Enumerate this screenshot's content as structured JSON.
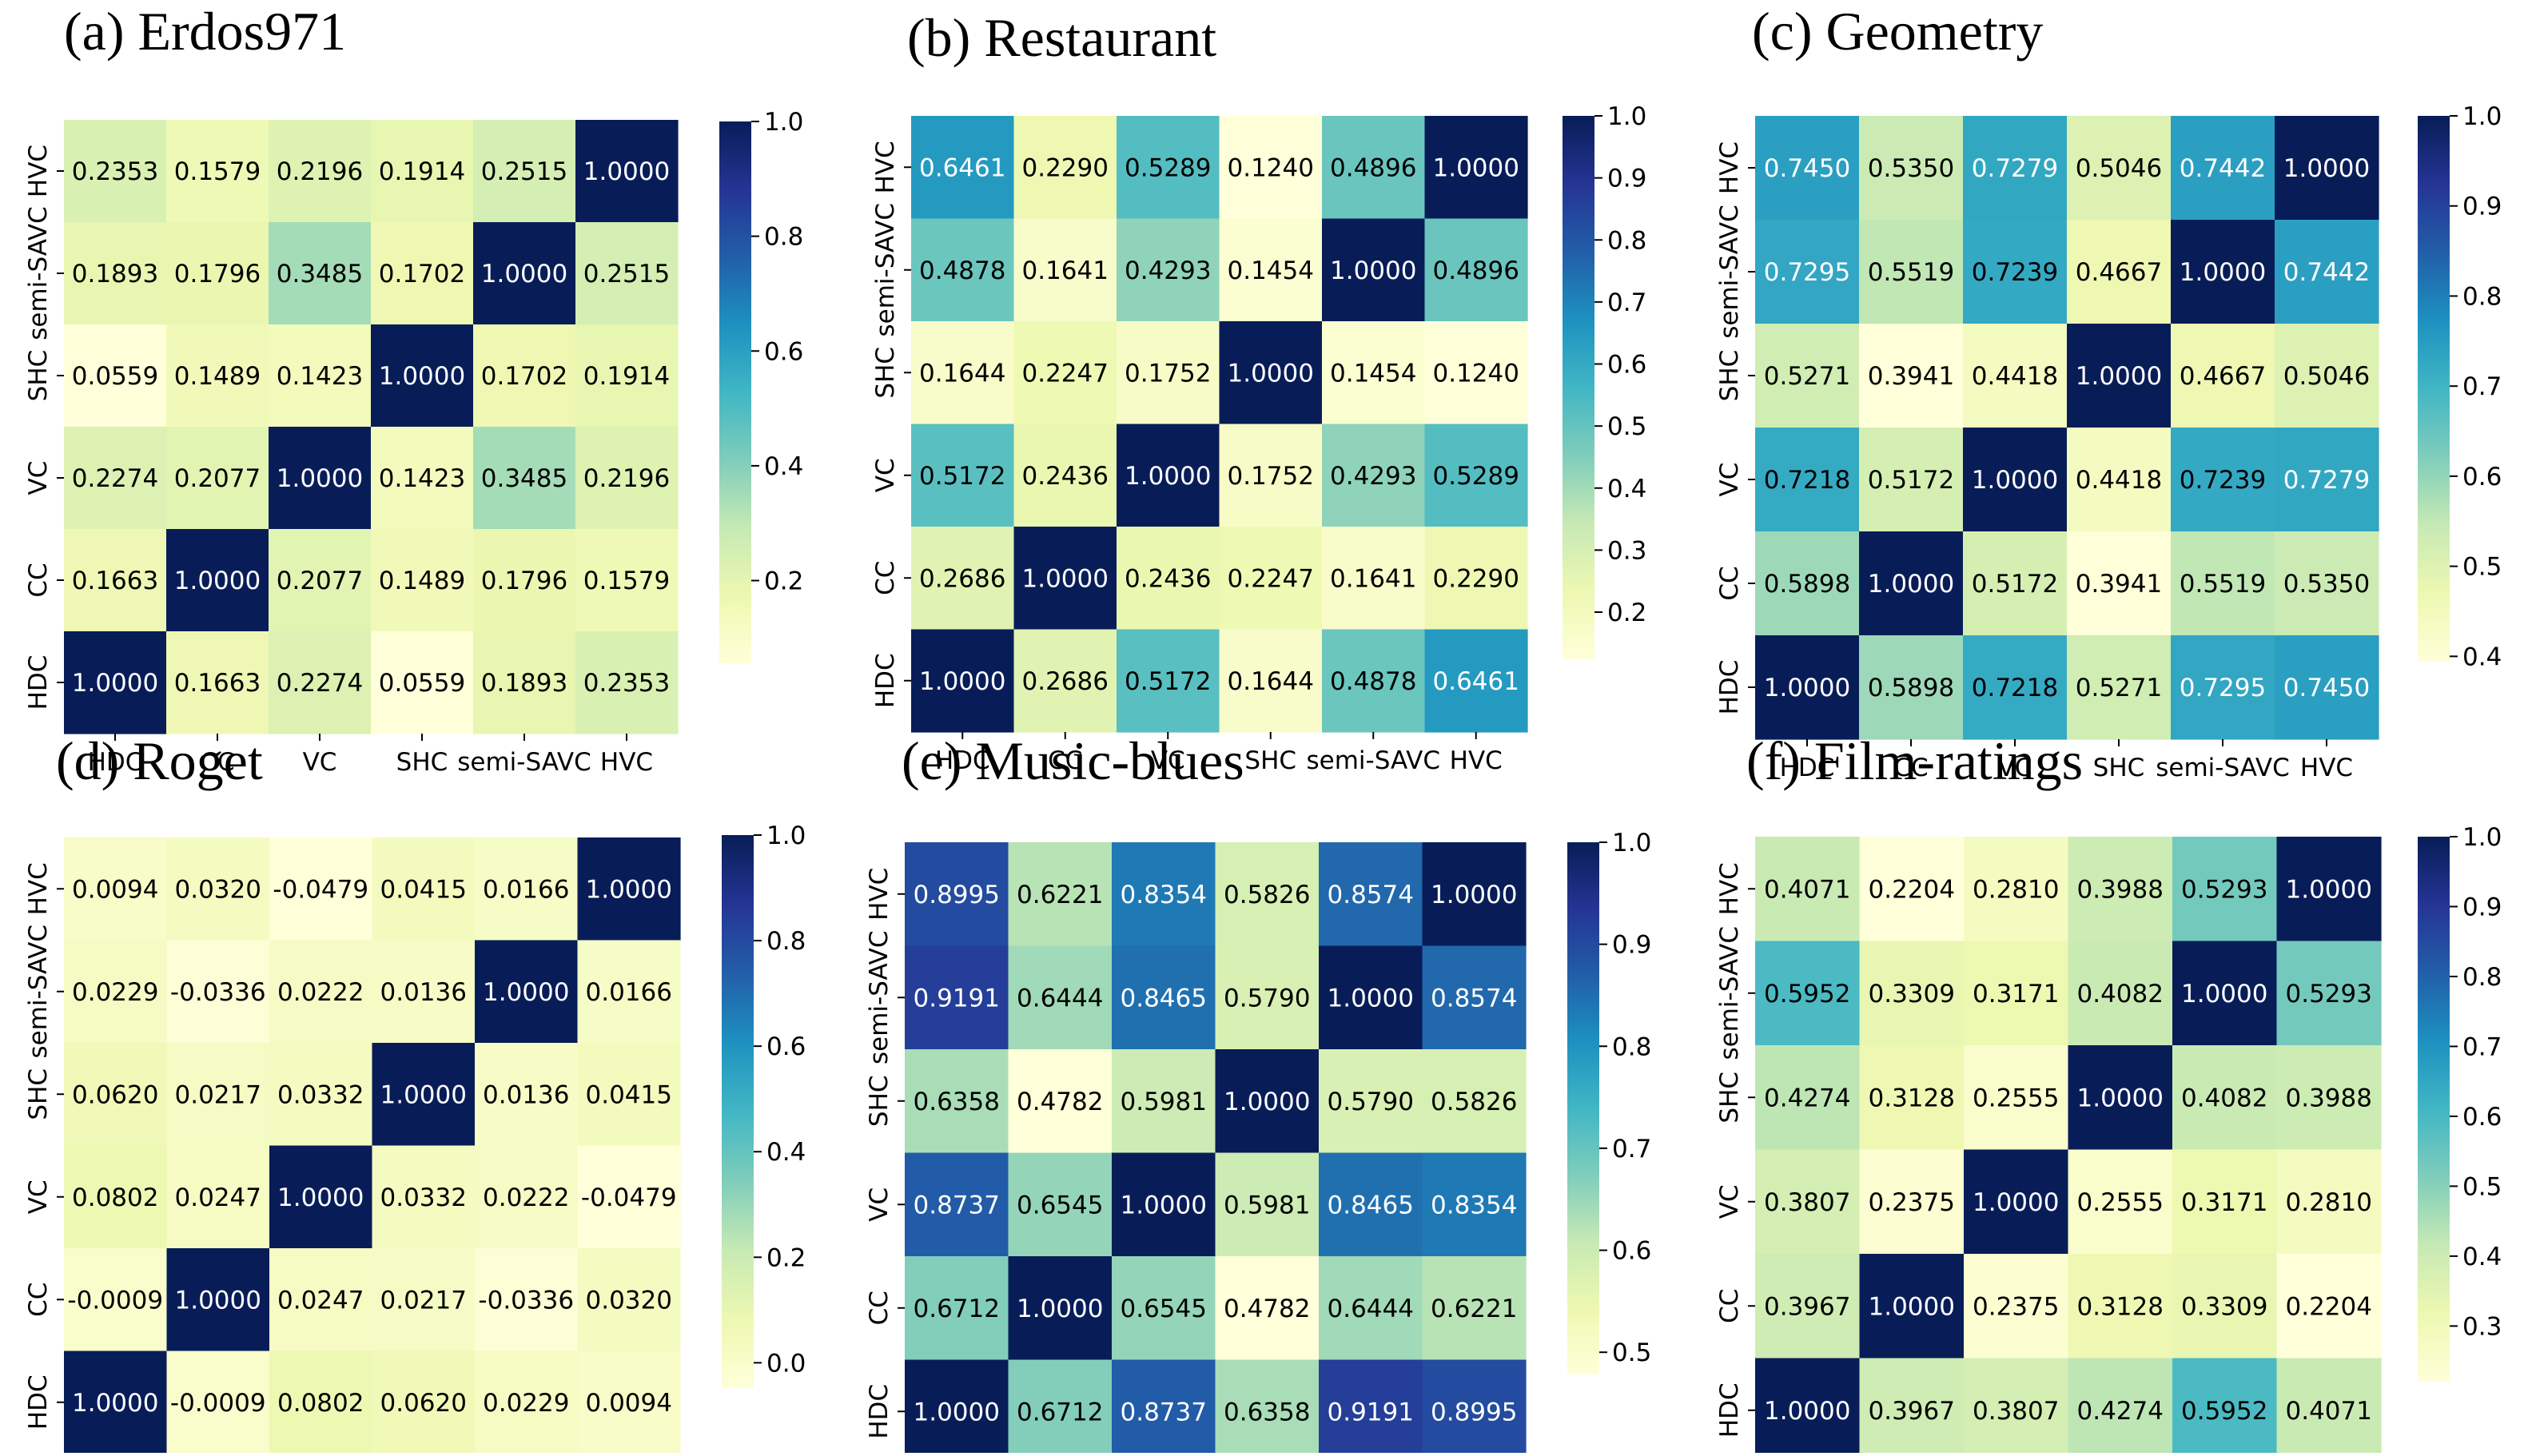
{
  "categories": [
    "HDC",
    "CC",
    "VC",
    "SHC",
    "semi-SAVC",
    "HVC"
  ],
  "colormap": [
    "#ffffd9",
    "#edf8b1",
    "#c7e9b4",
    "#7fcdbb",
    "#41b6c4",
    "#1d91c0",
    "#225ea8",
    "#253494",
    "#081d58"
  ],
  "chart_data": [
    {
      "type": "heatmap",
      "title": "(a) Erdos971",
      "categories": [
        "HDC",
        "CC",
        "VC",
        "SHC",
        "semi-SAVC",
        "HVC"
      ],
      "matrix": [
        [
          "1.0000",
          "0.1663",
          "0.2274",
          "0.0559",
          "0.1893",
          "0.2353"
        ],
        [
          "0.1663",
          "1.0000",
          "0.2077",
          "0.1489",
          "0.1796",
          "0.1579"
        ],
        [
          "0.2274",
          "0.2077",
          "1.0000",
          "0.1423",
          "0.3485",
          "0.2196"
        ],
        [
          "0.0559",
          "0.1489",
          "0.1423",
          "1.0000",
          "0.1702",
          "0.1914"
        ],
        [
          "0.1893",
          "0.1796",
          "0.3485",
          "0.1702",
          "1.0000",
          "0.2515"
        ],
        [
          "0.2353",
          "0.1579",
          "0.2196",
          "0.1914",
          "0.2515",
          "1.0000"
        ]
      ],
      "vmin": 0.0559,
      "vmax": 1.0,
      "colorbar_ticks": [
        "1.0",
        "0.8",
        "0.6",
        "0.4",
        "0.2"
      ]
    },
    {
      "type": "heatmap",
      "title": "(b) Restaurant",
      "categories": [
        "HDC",
        "CC",
        "VC",
        "SHC",
        "semi-SAVC",
        "HVC"
      ],
      "matrix": [
        [
          "1.0000",
          "0.2686",
          "0.5172",
          "0.1644",
          "0.4878",
          "0.6461"
        ],
        [
          "0.2686",
          "1.0000",
          "0.2436",
          "0.2247",
          "0.1641",
          "0.2290"
        ],
        [
          "0.5172",
          "0.2436",
          "1.0000",
          "0.1752",
          "0.4293",
          "0.5289"
        ],
        [
          "0.1644",
          "0.2247",
          "0.1752",
          "1.0000",
          "0.1454",
          "0.1240"
        ],
        [
          "0.4878",
          "0.1641",
          "0.4293",
          "0.1454",
          "1.0000",
          "0.4896"
        ],
        [
          "0.6461",
          "0.2290",
          "0.5289",
          "0.1240",
          "0.4896",
          "1.0000"
        ]
      ],
      "vmin": 0.124,
      "vmax": 1.0,
      "colorbar_ticks": [
        "1.0",
        "0.9",
        "0.8",
        "0.7",
        "0.6",
        "0.5",
        "0.4",
        "0.3",
        "0.2"
      ]
    },
    {
      "type": "heatmap",
      "title": "(c) Geometry",
      "categories": [
        "HDC",
        "CC",
        "VC",
        "SHC",
        "semi-SAVC",
        "HVC"
      ],
      "matrix": [
        [
          "1.0000",
          "0.5898",
          "0.7218",
          "0.5271",
          "0.7295",
          "0.7450"
        ],
        [
          "0.5898",
          "1.0000",
          "0.5172",
          "0.3941",
          "0.5519",
          "0.5350"
        ],
        [
          "0.7218",
          "0.5172",
          "1.0000",
          "0.4418",
          "0.7239",
          "0.7279"
        ],
        [
          "0.5271",
          "0.3941",
          "0.4418",
          "1.0000",
          "0.4667",
          "0.5046"
        ],
        [
          "0.7295",
          "0.5519",
          "0.7239",
          "0.4667",
          "1.0000",
          "0.7442"
        ],
        [
          "0.7450",
          "0.5350",
          "0.7279",
          "0.5046",
          "0.7442",
          "1.0000"
        ]
      ],
      "vmin": 0.3941,
      "vmax": 1.0,
      "colorbar_ticks": [
        "1.0",
        "0.9",
        "0.8",
        "0.7",
        "0.6",
        "0.5",
        "0.4"
      ]
    },
    {
      "type": "heatmap",
      "title": "(d) Roget",
      "categories": [
        "HDC",
        "CC",
        "VC",
        "SHC",
        "semi-SAVC",
        "HVC"
      ],
      "matrix": [
        [
          "1.0000",
          "-0.0009",
          "0.0802",
          "0.0620",
          "0.0229",
          "0.0094"
        ],
        [
          "-0.0009",
          "1.0000",
          "0.0247",
          "0.0217",
          "-0.0336",
          "0.0320"
        ],
        [
          "0.0802",
          "0.0247",
          "1.0000",
          "0.0332",
          "0.0222",
          "-0.0479"
        ],
        [
          "0.0620",
          "0.0217",
          "0.0332",
          "1.0000",
          "0.0136",
          "0.0415"
        ],
        [
          "0.0229",
          "-0.0336",
          "0.0222",
          "0.0136",
          "1.0000",
          "0.0166"
        ],
        [
          "0.0094",
          "0.0320",
          "-0.0479",
          "0.0415",
          "0.0166",
          "1.0000"
        ]
      ],
      "vmin": -0.0479,
      "vmax": 1.0,
      "colorbar_ticks": [
        "1.0",
        "0.8",
        "0.6",
        "0.4",
        "0.2",
        "0.0"
      ]
    },
    {
      "type": "heatmap",
      "title": "(e) Music-blues",
      "categories": [
        "HDC",
        "CC",
        "VC",
        "SHC",
        "semi-SAVC",
        "HVC"
      ],
      "matrix": [
        [
          "1.0000",
          "0.6712",
          "0.8737",
          "0.6358",
          "0.9191",
          "0.8995"
        ],
        [
          "0.6712",
          "1.0000",
          "0.6545",
          "0.4782",
          "0.6444",
          "0.6221"
        ],
        [
          "0.8737",
          "0.6545",
          "1.0000",
          "0.5981",
          "0.8465",
          "0.8354"
        ],
        [
          "0.6358",
          "0.4782",
          "0.5981",
          "1.0000",
          "0.5790",
          "0.5826"
        ],
        [
          "0.9191",
          "0.6444",
          "0.8465",
          "0.5790",
          "1.0000",
          "0.8574"
        ],
        [
          "0.8995",
          "0.6221",
          "0.8354",
          "0.5826",
          "0.8574",
          "1.0000"
        ]
      ],
      "vmin": 0.4782,
      "vmax": 1.0,
      "colorbar_ticks": [
        "1.0",
        "0.9",
        "0.8",
        "0.7",
        "0.6",
        "0.5"
      ]
    },
    {
      "type": "heatmap",
      "title": "(f) Film-ratings",
      "categories": [
        "HDC",
        "CC",
        "VC",
        "SHC",
        "semi-SAVC",
        "HVC"
      ],
      "matrix": [
        [
          "1.0000",
          "0.3967",
          "0.3807",
          "0.4274",
          "0.5952",
          "0.4071"
        ],
        [
          "0.3967",
          "1.0000",
          "0.2375",
          "0.3128",
          "0.3309",
          "0.2204"
        ],
        [
          "0.3807",
          "0.2375",
          "1.0000",
          "0.2555",
          "0.3171",
          "0.2810"
        ],
        [
          "0.4274",
          "0.3128",
          "0.2555",
          "1.0000",
          "0.4082",
          "0.3988"
        ],
        [
          "0.5952",
          "0.3309",
          "0.3171",
          "0.4082",
          "1.0000",
          "0.5293"
        ],
        [
          "0.4071",
          "0.2204",
          "0.2810",
          "0.3988",
          "0.5293",
          "1.0000"
        ]
      ],
      "vmin": 0.2204,
      "vmax": 1.0,
      "colorbar_ticks": [
        "1.0",
        "0.9",
        "0.8",
        "0.7",
        "0.6",
        "0.5",
        "0.4",
        "0.3"
      ]
    }
  ]
}
